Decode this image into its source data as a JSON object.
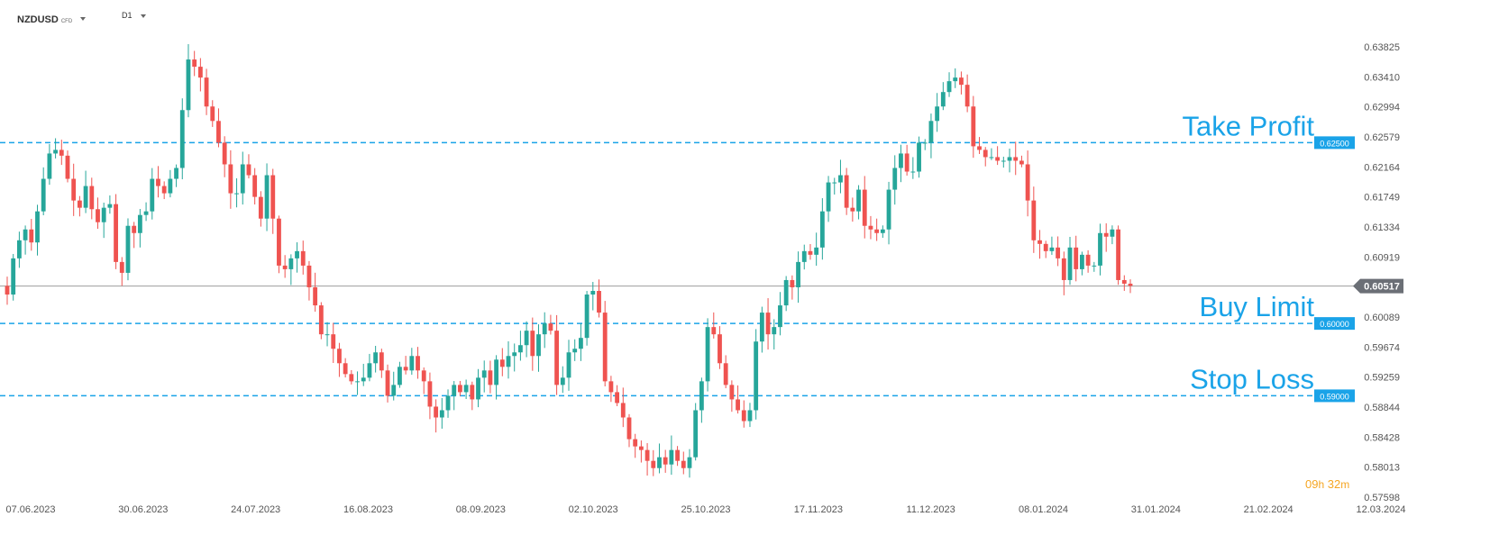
{
  "header": {
    "symbol": "NZDUSD",
    "symbol_sub": "CFD",
    "timeframe": "D1"
  },
  "countdown": {
    "hours": "09",
    "hours_unit": "h",
    "minutes": "32",
    "minutes_unit": "m"
  },
  "colors": {
    "up": "#26a69a",
    "down": "#ef5350",
    "level": "#1aa3e8",
    "price_line": "#9e9e9e",
    "price_tag": "#6b6f76",
    "axis_text": "#555555"
  },
  "chart_data": {
    "type": "candlestick",
    "symbol": "NZDUSD",
    "timeframe": "D1",
    "ylim": [
      0.57598,
      0.63825
    ],
    "y_ticks": [
      "0.63825",
      "0.63410",
      "0.62994",
      "0.62579",
      "0.62164",
      "0.61749",
      "0.61334",
      "0.60919",
      "0.60089",
      "0.59674",
      "0.59259",
      "0.58844",
      "0.58428",
      "0.58013",
      "0.57598"
    ],
    "x_ticks": [
      "07.06.2023",
      "30.06.2023",
      "24.07.2023",
      "16.08.2023",
      "08.09.2023",
      "02.10.2023",
      "25.10.2023",
      "17.11.2023",
      "11.12.2023",
      "08.01.2024",
      "31.01.2024",
      "21.02.2024",
      "12.03.2024"
    ],
    "current_price": "0.60517",
    "levels": [
      {
        "label": "Take Profit",
        "price": 0.625,
        "tag": "0.62500"
      },
      {
        "label": "Buy Limit",
        "price": 0.6,
        "tag": "0.60000"
      },
      {
        "label": "Stop Loss",
        "price": 0.59,
        "tag": "0.59000"
      }
    ],
    "closes": [
      0.604,
      0.609,
      0.6115,
      0.613,
      0.6112,
      0.6155,
      0.62,
      0.6235,
      0.624,
      0.6232,
      0.62,
      0.617,
      0.616,
      0.619,
      0.6158,
      0.614,
      0.616,
      0.6165,
      0.6085,
      0.607,
      0.6135,
      0.6125,
      0.615,
      0.6155,
      0.62,
      0.619,
      0.618,
      0.62,
      0.6215,
      0.6295,
      0.6365,
      0.6355,
      0.634,
      0.63,
      0.628,
      0.625,
      0.622,
      0.618,
      0.618,
      0.622,
      0.6205,
      0.6175,
      0.6145,
      0.6205,
      0.6145,
      0.608,
      0.6075,
      0.609,
      0.61,
      0.608,
      0.605,
      0.6025,
      0.5985,
      0.5985,
      0.5965,
      0.5945,
      0.593,
      0.592,
      0.592,
      0.5925,
      0.5945,
      0.596,
      0.5935,
      0.59,
      0.5915,
      0.594,
      0.5935,
      0.5955,
      0.5935,
      0.592,
      0.5885,
      0.587,
      0.588,
      0.59,
      0.5915,
      0.5905,
      0.5915,
      0.5895,
      0.5925,
      0.5935,
      0.5915,
      0.595,
      0.594,
      0.5955,
      0.596,
      0.597,
      0.599,
      0.5955,
      0.5985,
      0.6,
      0.599,
      0.5915,
      0.5925,
      0.596,
      0.5965,
      0.598,
      0.604,
      0.6045,
      0.6015,
      0.592,
      0.5905,
      0.589,
      0.587,
      0.584,
      0.583,
      0.5825,
      0.581,
      0.58,
      0.5815,
      0.5805,
      0.5825,
      0.581,
      0.58,
      0.5815,
      0.588,
      0.592,
      0.5995,
      0.5985,
      0.5945,
      0.5915,
      0.5895,
      0.588,
      0.5865,
      0.588,
      0.5975,
      0.6015,
      0.5985,
      0.5995,
      0.6025,
      0.606,
      0.605,
      0.6085,
      0.61,
      0.6095,
      0.6105,
      0.6155,
      0.6195,
      0.6195,
      0.6205,
      0.616,
      0.6155,
      0.6185,
      0.6135,
      0.613,
      0.6125,
      0.613,
      0.6185,
      0.6215,
      0.6235,
      0.621,
      0.621,
      0.625,
      0.625,
      0.628,
      0.63,
      0.632,
      0.6335,
      0.634,
      0.633,
      0.63,
      0.6245,
      0.624,
      0.623,
      0.623,
      0.6225,
      0.6225,
      0.623,
      0.6225,
      0.622,
      0.617,
      0.6115,
      0.611,
      0.61,
      0.6105,
      0.609,
      0.606,
      0.6105,
      0.6075,
      0.6095,
      0.608,
      0.608,
      0.6125,
      0.612,
      0.613,
      0.606,
      0.6055,
      0.6052
    ]
  }
}
